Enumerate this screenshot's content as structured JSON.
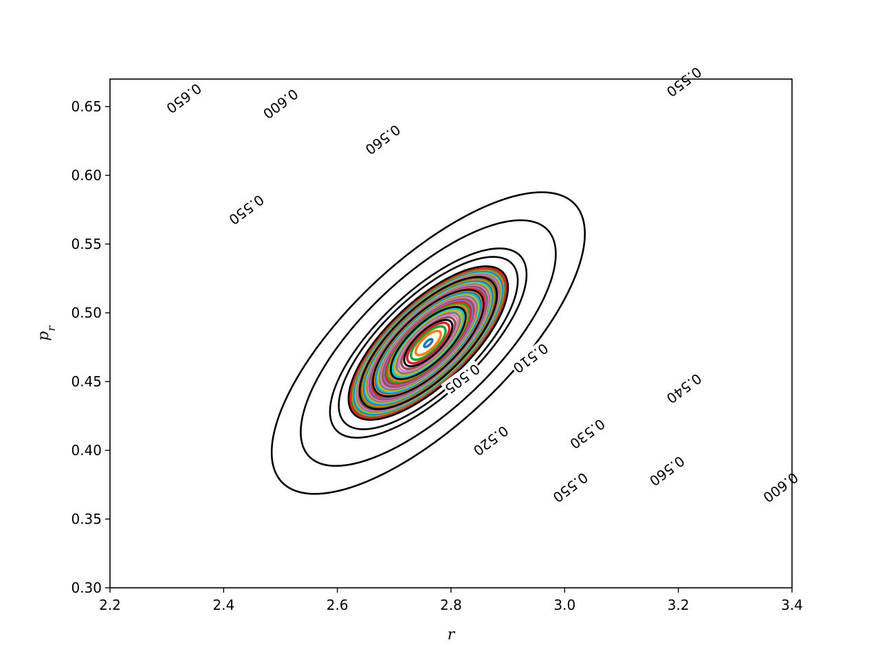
{
  "chart_data": {
    "type": "line",
    "title": "",
    "xlabel": "r",
    "ylabel": "p",
    "ylabel_subscript": "r",
    "xlim": [
      2.2,
      3.4
    ],
    "ylim": [
      0.3,
      0.67
    ],
    "x_ticks": [
      "2.2",
      "2.4",
      "2.6",
      "2.8",
      "3.0",
      "3.2",
      "3.4"
    ],
    "y_ticks": [
      "0.30",
      "0.35",
      "0.40",
      "0.45",
      "0.50",
      "0.55",
      "0.60",
      "0.65"
    ],
    "grid": false,
    "legend": "none",
    "center": [
      2.76,
      0.478
    ],
    "orbit_count": 44,
    "orbit_colors": [
      "#1f77b4",
      "#ff7f0e",
      "#2ca02c",
      "#d62728",
      "#9467bd",
      "#8c564b",
      "#e377c2",
      "#7f7f7f",
      "#bcbd22",
      "#17becf"
    ],
    "contours": [
      {
        "value": 0.505,
        "label": "0.505",
        "labels_at": [
          [
            2.82,
            0.452
          ]
        ]
      },
      {
        "value": 0.51,
        "label": "0.510",
        "labels_at": [
          [
            2.94,
            0.467
          ]
        ]
      },
      {
        "value": 0.52,
        "label": "0.520",
        "labels_at": [
          [
            2.87,
            0.407
          ]
        ]
      },
      {
        "value": 0.53,
        "label": "0.530",
        "labels_at": [
          [
            3.04,
            0.412
          ]
        ]
      },
      {
        "value": 0.54,
        "label": "0.540",
        "labels_at": [
          [
            3.21,
            0.445
          ]
        ]
      },
      {
        "value": 0.55,
        "label": "0.550",
        "labels_at": [
          [
            2.44,
            0.575
          ],
          [
            3.01,
            0.373
          ]
        ]
      },
      {
        "value": 0.56,
        "label": "0.560",
        "labels_at": [
          [
            2.68,
            0.626
          ],
          [
            3.18,
            0.385
          ]
        ]
      },
      {
        "value": 0.6,
        "label": "0.600",
        "labels_at": [
          [
            2.5,
            0.652
          ],
          [
            3.38,
            0.373
          ]
        ]
      },
      {
        "value": 0.65,
        "label": "0.650",
        "labels_at": [
          [
            2.33,
            0.656
          ],
          [
            3.55,
            0.342
          ]
        ]
      },
      {
        "value": 0.55,
        "label": "0.550",
        "labels_at": [
          [
            3.21,
            0.668
          ]
        ]
      }
    ]
  }
}
